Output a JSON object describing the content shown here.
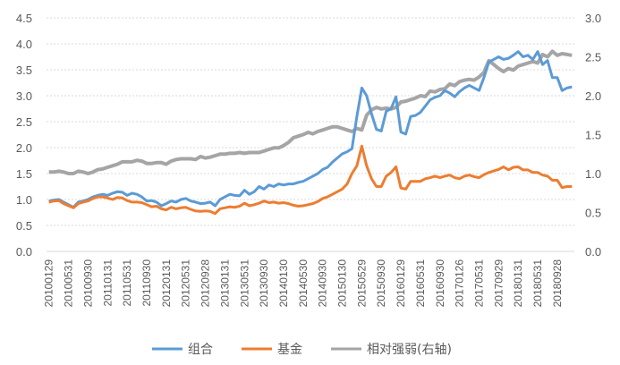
{
  "chart_data": {
    "type": "line",
    "title": "",
    "xlabel": "",
    "ylabel": "",
    "y_left_lim": [
      0,
      4.5
    ],
    "y_left_ticks": [
      "0.0",
      "0.5",
      "1.0",
      "1.5",
      "2.0",
      "2.5",
      "3.0",
      "3.5",
      "4.0",
      "4.5"
    ],
    "y_right_lim": [
      0,
      3.0
    ],
    "y_right_ticks": [
      "0.0",
      "0.5",
      "1.0",
      "1.5",
      "2.0",
      "2.5",
      "3.0"
    ],
    "grid": true,
    "legend_position": "bottom",
    "x_tick_labels": [
      "20100129",
      "20100531",
      "20100930",
      "20110131",
      "20110531",
      "20110930",
      "20120131",
      "20120531",
      "20120928",
      "20130131",
      "20130531",
      "20130930",
      "20140130",
      "20140530",
      "20140930",
      "20150130",
      "20150529",
      "20150930",
      "20160129",
      "20160531",
      "20160930",
      "20170126",
      "20170531",
      "20170929",
      "20180131",
      "20180531",
      "20180928"
    ],
    "x_tick_every_months": 4,
    "series": [
      {
        "name": "组合",
        "axis": "left",
        "color": "#5B9BD5",
        "values": [
          0.97,
          0.99,
          1.0,
          0.95,
          0.9,
          0.85,
          0.95,
          0.97,
          1.0,
          1.05,
          1.08,
          1.1,
          1.08,
          1.12,
          1.15,
          1.14,
          1.08,
          1.12,
          1.1,
          1.05,
          0.97,
          0.98,
          0.95,
          0.88,
          0.92,
          0.97,
          0.95,
          1.0,
          1.02,
          0.97,
          0.95,
          0.92,
          0.93,
          0.95,
          0.88,
          1.0,
          1.05,
          1.1,
          1.08,
          1.07,
          1.18,
          1.1,
          1.15,
          1.25,
          1.2,
          1.28,
          1.25,
          1.3,
          1.28,
          1.3,
          1.3,
          1.33,
          1.35,
          1.4,
          1.45,
          1.5,
          1.58,
          1.62,
          1.72,
          1.8,
          1.88,
          1.92,
          1.98,
          2.6,
          3.15,
          3.0,
          2.65,
          2.35,
          2.32,
          2.7,
          2.75,
          2.98,
          2.3,
          2.26,
          2.6,
          2.62,
          2.68,
          2.8,
          2.92,
          2.97,
          3.0,
          3.1,
          3.05,
          2.98,
          3.08,
          3.15,
          3.2,
          3.15,
          3.1,
          3.35,
          3.65,
          3.7,
          3.75,
          3.7,
          3.72,
          3.78,
          3.85,
          3.75,
          3.78,
          3.7,
          3.85,
          3.6,
          3.68,
          3.35,
          3.35,
          3.1,
          3.15,
          3.17
        ]
      },
      {
        "name": "基金",
        "axis": "left",
        "color": "#ED7D31",
        "values": [
          0.95,
          0.97,
          0.98,
          0.92,
          0.88,
          0.84,
          0.92,
          0.95,
          0.97,
          1.02,
          1.05,
          1.05,
          1.03,
          1.0,
          1.04,
          1.03,
          0.98,
          0.95,
          0.95,
          0.94,
          0.9,
          0.86,
          0.87,
          0.82,
          0.8,
          0.85,
          0.82,
          0.84,
          0.85,
          0.81,
          0.78,
          0.77,
          0.78,
          0.77,
          0.73,
          0.82,
          0.84,
          0.86,
          0.85,
          0.87,
          0.93,
          0.88,
          0.9,
          0.93,
          0.97,
          0.94,
          0.95,
          0.93,
          0.94,
          0.92,
          0.89,
          0.87,
          0.88,
          0.9,
          0.92,
          0.96,
          1.02,
          1.05,
          1.1,
          1.15,
          1.2,
          1.3,
          1.5,
          1.65,
          2.03,
          1.65,
          1.4,
          1.25,
          1.25,
          1.45,
          1.52,
          1.63,
          1.22,
          1.2,
          1.35,
          1.35,
          1.35,
          1.4,
          1.42,
          1.45,
          1.42,
          1.45,
          1.47,
          1.42,
          1.4,
          1.45,
          1.47,
          1.44,
          1.42,
          1.48,
          1.52,
          1.55,
          1.58,
          1.63,
          1.57,
          1.62,
          1.63,
          1.57,
          1.57,
          1.52,
          1.52,
          1.47,
          1.45,
          1.37,
          1.37,
          1.23,
          1.25,
          1.25
        ]
      },
      {
        "name": "相对强弱(右轴)",
        "axis": "right",
        "color": "#A5A5A5",
        "values": [
          1.02,
          1.02,
          1.03,
          1.02,
          1.0,
          1.0,
          1.03,
          1.02,
          1.0,
          1.02,
          1.05,
          1.06,
          1.08,
          1.1,
          1.12,
          1.15,
          1.15,
          1.15,
          1.17,
          1.16,
          1.13,
          1.13,
          1.14,
          1.14,
          1.12,
          1.16,
          1.18,
          1.19,
          1.19,
          1.19,
          1.18,
          1.22,
          1.2,
          1.21,
          1.23,
          1.25,
          1.25,
          1.26,
          1.26,
          1.27,
          1.26,
          1.27,
          1.27,
          1.27,
          1.29,
          1.31,
          1.33,
          1.33,
          1.36,
          1.4,
          1.46,
          1.48,
          1.5,
          1.53,
          1.51,
          1.54,
          1.56,
          1.58,
          1.6,
          1.6,
          1.58,
          1.56,
          1.54,
          1.58,
          1.56,
          1.75,
          1.82,
          1.85,
          1.83,
          1.84,
          1.83,
          1.85,
          1.92,
          1.93,
          1.95,
          1.97,
          2.0,
          1.99,
          2.06,
          2.05,
          2.08,
          2.09,
          2.15,
          2.13,
          2.18,
          2.2,
          2.21,
          2.2,
          2.24,
          2.3,
          2.45,
          2.4,
          2.35,
          2.31,
          2.35,
          2.33,
          2.38,
          2.4,
          2.42,
          2.44,
          2.42,
          2.53,
          2.5,
          2.57,
          2.52,
          2.54,
          2.53,
          2.52
        ]
      }
    ]
  }
}
